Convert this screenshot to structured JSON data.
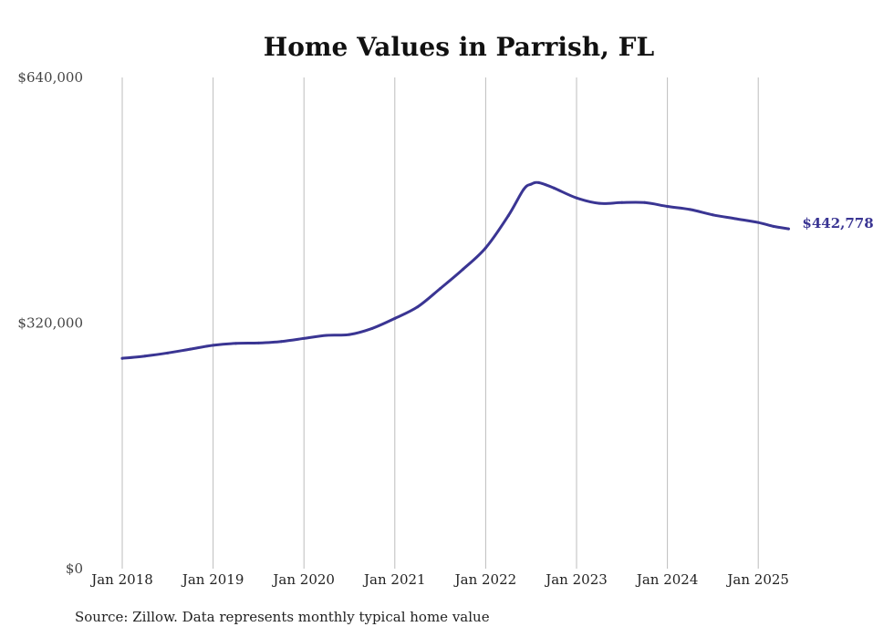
{
  "source_note": "Source: Zillow. Data represents monthly typical home value",
  "colors": {
    "line": "#3a3593",
    "grid": "#bdbdbd",
    "text": "#222222"
  },
  "chart_data": {
    "type": "line",
    "title": "Home Values in Parrish, FL",
    "xlabel": "",
    "ylabel": "",
    "ylim": [
      0,
      640000
    ],
    "yticks": [
      0,
      320000,
      640000
    ],
    "ytick_labels": [
      "$0",
      "$320,000",
      "$640,000"
    ],
    "xticks": [
      "2018-01",
      "2019-01",
      "2020-01",
      "2021-01",
      "2022-01",
      "2023-01",
      "2024-01",
      "2025-01"
    ],
    "xtick_labels": [
      "Jan 2018",
      "Jan 2019",
      "Jan 2020",
      "Jan 2021",
      "Jan 2022",
      "Jan 2023",
      "Jan 2024",
      "Jan 2025"
    ],
    "grid": "vertical",
    "end_label": "$442,778",
    "series": [
      {
        "color": "#3a3593",
        "points": [
          [
            "2018-01",
            274000
          ],
          [
            "2018-04",
            277000
          ],
          [
            "2018-07",
            281000
          ],
          [
            "2018-10",
            286000
          ],
          [
            "2019-01",
            291000
          ],
          [
            "2019-04",
            293500
          ],
          [
            "2019-07",
            294000
          ],
          [
            "2019-10",
            296000
          ],
          [
            "2020-01",
            300000
          ],
          [
            "2020-04",
            304000
          ],
          [
            "2020-07",
            305000
          ],
          [
            "2020-10",
            313000
          ],
          [
            "2021-01",
            326000
          ],
          [
            "2021-04",
            341000
          ],
          [
            "2021-07",
            365000
          ],
          [
            "2021-10",
            390000
          ],
          [
            "2022-01",
            418000
          ],
          [
            "2022-04",
            460000
          ],
          [
            "2022-06",
            494000
          ],
          [
            "2022-07",
            501000
          ],
          [
            "2022-08",
            503000
          ],
          [
            "2022-10",
            496000
          ],
          [
            "2023-01",
            483000
          ],
          [
            "2023-04",
            476000
          ],
          [
            "2023-07",
            477000
          ],
          [
            "2023-10",
            477000
          ],
          [
            "2024-01",
            472000
          ],
          [
            "2024-04",
            468000
          ],
          [
            "2024-07",
            461000
          ],
          [
            "2024-10",
            456000
          ],
          [
            "2025-01",
            451000
          ],
          [
            "2025-03",
            446000
          ],
          [
            "2025-05",
            442778
          ]
        ]
      }
    ]
  }
}
